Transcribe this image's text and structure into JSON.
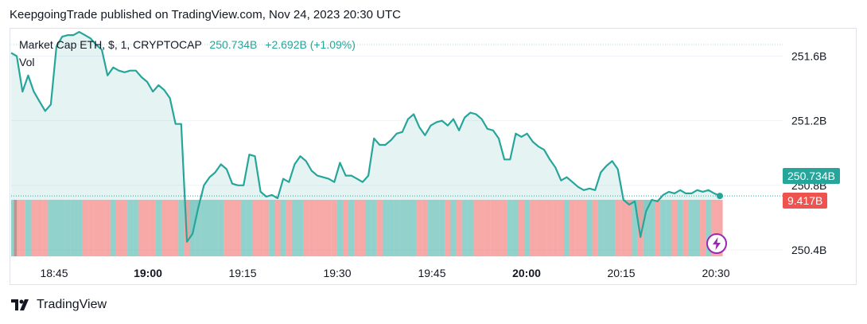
{
  "header": {
    "published": "KeepgoingTrade published on TradingView.com, Nov 24, 2023 20:30 UTC"
  },
  "legend": {
    "symbol": "Market Cap ETH, $, 1, CRYPTOCAP",
    "value": "250.734B",
    "change": "+2.692B (+1.09%)",
    "volume_label": "Vol"
  },
  "price_tag": {
    "text": "250.734B",
    "color": "#26a69a"
  },
  "volume_tag": {
    "text": "9.417B",
    "color": "#ef5350"
  },
  "footer": {
    "brand": "TradingView",
    "logo_icon": "tradingview-logo-icon"
  },
  "colors": {
    "line": "#26a69a",
    "vol_up": "#26a69a",
    "vol_down": "#ef5350"
  },
  "chart_data": {
    "type": "area",
    "yaxis": {
      "ticks": [
        251.6,
        251.2,
        250.8,
        250.4
      ],
      "tick_labels": [
        "251.6B",
        "251.2B",
        "250.8B",
        "250.4B"
      ]
    },
    "xaxis": {
      "tick_labels": [
        "18:45",
        "19:00",
        "19:15",
        "19:30",
        "19:45",
        "20:00",
        "20:15",
        "20:30"
      ],
      "bold": [
        "19:00",
        "20:00"
      ]
    },
    "ylim": [
      250.36,
      251.77
    ],
    "last_value": 250.734,
    "series": [
      {
        "values": [
          251.62,
          251.6,
          251.38,
          251.48,
          251.38,
          251.32,
          251.26,
          251.3,
          251.66,
          251.72,
          251.73,
          251.73,
          251.75,
          251.73,
          251.71,
          251.67,
          251.64,
          251.48,
          251.53,
          251.51,
          251.5,
          251.51,
          251.51,
          251.47,
          251.44,
          251.38,
          251.42,
          251.39,
          251.34,
          251.18,
          251.18,
          250.45,
          250.5,
          250.66,
          250.8,
          250.85,
          250.88,
          250.93,
          250.9,
          250.81,
          250.8,
          250.8,
          250.99,
          250.98,
          250.76,
          250.73,
          250.74,
          250.72,
          250.84,
          250.82,
          250.93,
          250.98,
          250.95,
          250.89,
          250.86,
          250.85,
          250.84,
          250.82,
          250.94,
          250.86,
          250.86,
          250.84,
          250.82,
          250.86,
          251.09,
          251.05,
          251.05,
          251.08,
          251.12,
          251.13,
          251.21,
          251.24,
          251.16,
          251.11,
          251.17,
          251.19,
          251.2,
          251.17,
          251.21,
          251.14,
          251.22,
          251.25,
          251.24,
          251.21,
          251.15,
          251.14,
          251.09,
          250.96,
          250.96,
          251.12,
          251.1,
          251.12,
          251.07,
          251.04,
          251.02,
          250.96,
          250.91,
          250.83,
          250.85,
          250.82,
          250.79,
          250.77,
          250.78,
          250.77,
          250.88,
          250.92,
          250.95,
          250.9,
          250.71,
          250.68,
          250.7,
          250.48,
          250.64,
          250.71,
          250.7,
          250.74,
          250.76,
          250.75,
          250.77,
          250.75,
          250.75,
          250.77,
          250.76,
          250.77,
          250.75,
          250.734
        ]
      }
    ]
  }
}
